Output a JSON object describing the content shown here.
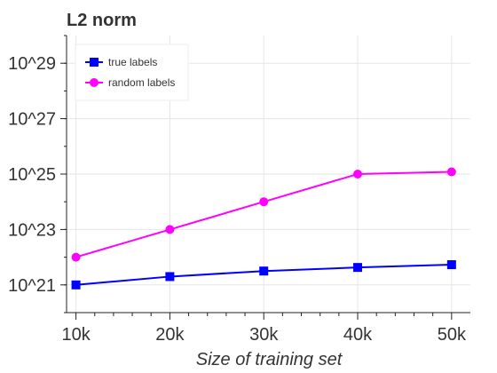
{
  "chart_data": {
    "type": "line",
    "title": "L2 norm",
    "xlabel": "Size of training set",
    "ylabel": "",
    "x_tick_labels": [
      "10k",
      "20k",
      "30k",
      "40k",
      "50k"
    ],
    "y_tick_labels": [
      "10^21",
      "10^23",
      "10^25",
      "10^27",
      "10^29"
    ],
    "x": [
      10000,
      20000,
      30000,
      40000,
      50000
    ],
    "xlim": [
      9000,
      52000
    ],
    "y_scale": "log",
    "y_tick_exponents": [
      21,
      23,
      25,
      27,
      29
    ],
    "ylim_exponent": [
      20.0,
      30.0
    ],
    "grid": true,
    "legend_placement": "top-left",
    "series": [
      {
        "name": "true labels",
        "color": "#0000ff",
        "marker": "square",
        "log10_values": [
          21.0,
          21.3,
          21.5,
          21.63,
          21.73
        ]
      },
      {
        "name": "random labels",
        "color": "#ff00ff",
        "marker": "circle",
        "log10_values": [
          22.0,
          23.0,
          24.0,
          25.0,
          25.08
        ]
      }
    ]
  }
}
